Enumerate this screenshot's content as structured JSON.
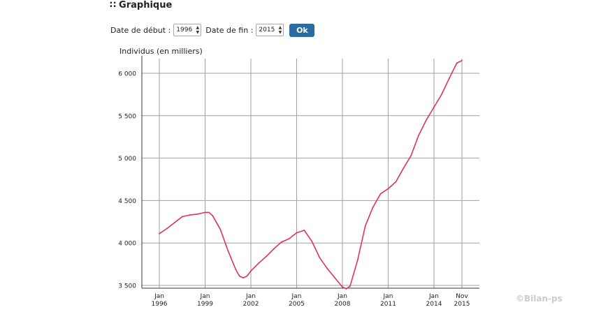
{
  "header": {
    "icon": "grip-dots-icon",
    "title": "Graphique"
  },
  "controls": {
    "start_label": "Date de début :",
    "start_value": "1996",
    "end_label": "Date de fin :",
    "end_value": "2015",
    "ok_label": "Ok"
  },
  "watermark": "©Bilan-ps",
  "chart_data": {
    "type": "line",
    "ylabel": "Individus (en milliers)",
    "ylim": [
      3500,
      6250
    ],
    "x_range": [
      "1996-01",
      "2015-11"
    ],
    "grid": true,
    "y_ticks": [
      {
        "value": 3500,
        "label": "3 500"
      },
      {
        "value": 4000,
        "label": "4 000"
      },
      {
        "value": 4500,
        "label": "4 500"
      },
      {
        "value": 5000,
        "label": "5 000"
      },
      {
        "value": 5500,
        "label": "5 500"
      },
      {
        "value": 6000,
        "label": "6 000"
      }
    ],
    "x_ticks": [
      {
        "x": "1996-01",
        "line1": "Jan",
        "line2": "1996"
      },
      {
        "x": "1999-01",
        "line1": "Jan",
        "line2": "1999"
      },
      {
        "x": "2002-01",
        "line1": "Jan",
        "line2": "2002"
      },
      {
        "x": "2005-01",
        "line1": "Jan",
        "line2": "2005"
      },
      {
        "x": "2008-01",
        "line1": "Jan",
        "line2": "2008"
      },
      {
        "x": "2011-01",
        "line1": "Jan",
        "line2": "2011"
      },
      {
        "x": "2014-01",
        "line1": "Jan",
        "line2": "2014"
      },
      {
        "x": "2015-11",
        "line1": "Nov",
        "line2": "2015"
      }
    ],
    "series": [
      {
        "color": "#e0325e",
        "points": [
          [
            "1996-01",
            4110
          ],
          [
            "1996-07",
            4170
          ],
          [
            "1997-01",
            4240
          ],
          [
            "1997-07",
            4310
          ],
          [
            "1998-01",
            4330
          ],
          [
            "1998-07",
            4340
          ],
          [
            "1999-01",
            4360
          ],
          [
            "1999-04",
            4360
          ],
          [
            "1999-07",
            4320
          ],
          [
            "2000-01",
            4160
          ],
          [
            "2000-07",
            3910
          ],
          [
            "2001-01",
            3690
          ],
          [
            "2001-04",
            3610
          ],
          [
            "2001-07",
            3590
          ],
          [
            "2001-10",
            3610
          ],
          [
            "2002-01",
            3670
          ],
          [
            "2002-07",
            3760
          ],
          [
            "2003-01",
            3840
          ],
          [
            "2003-07",
            3930
          ],
          [
            "2004-01",
            4010
          ],
          [
            "2004-07",
            4050
          ],
          [
            "2005-01",
            4120
          ],
          [
            "2005-07",
            4150
          ],
          [
            "2006-01",
            4020
          ],
          [
            "2006-07",
            3830
          ],
          [
            "2007-01",
            3700
          ],
          [
            "2007-07",
            3590
          ],
          [
            "2008-01",
            3480
          ],
          [
            "2008-04",
            3460
          ],
          [
            "2008-07",
            3490
          ],
          [
            "2009-01",
            3800
          ],
          [
            "2009-07",
            4200
          ],
          [
            "2010-01",
            4420
          ],
          [
            "2010-07",
            4580
          ],
          [
            "2011-01",
            4640
          ],
          [
            "2011-07",
            4720
          ],
          [
            "2012-01",
            4880
          ],
          [
            "2012-07",
            5030
          ],
          [
            "2013-01",
            5270
          ],
          [
            "2013-07",
            5450
          ],
          [
            "2014-01",
            5600
          ],
          [
            "2014-07",
            5750
          ],
          [
            "2015-01",
            5940
          ],
          [
            "2015-07",
            6120
          ],
          [
            "2015-11",
            6150
          ]
        ]
      }
    ]
  }
}
